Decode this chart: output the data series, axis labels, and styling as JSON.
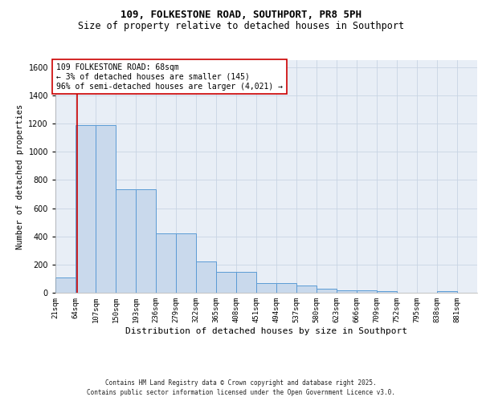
{
  "title": "109, FOLKESTONE ROAD, SOUTHPORT, PR8 5PH",
  "subtitle": "Size of property relative to detached houses in Southport",
  "xlabel": "Distribution of detached houses by size in Southport",
  "ylabel": "Number of detached properties",
  "bar_edges": [
    21,
    64,
    107,
    150,
    193,
    236,
    279,
    322,
    365,
    408,
    451,
    494,
    537,
    580,
    623,
    666,
    709,
    752,
    795,
    838,
    881
  ],
  "bar_heights": [
    107,
    1190,
    1190,
    735,
    735,
    420,
    420,
    220,
    150,
    150,
    70,
    70,
    50,
    30,
    15,
    15,
    10,
    0,
    0,
    10,
    0
  ],
  "bar_color": "#c9d9ec",
  "bar_edge_color": "#5b9bd5",
  "grid_color": "#c8d4e3",
  "background_color": "#e8eef6",
  "property_size": 68,
  "red_line_color": "#cc0000",
  "annotation_text": "109 FOLKESTONE ROAD: 68sqm\n← 3% of detached houses are smaller (145)\n96% of semi-detached houses are larger (4,021) →",
  "annotation_box_color": "#cc0000",
  "ylim": [
    0,
    1650
  ],
  "yticks": [
    0,
    200,
    400,
    600,
    800,
    1000,
    1200,
    1400,
    1600
  ],
  "footer_line1": "Contains HM Land Registry data © Crown copyright and database right 2025.",
  "footer_line2": "Contains public sector information licensed under the Open Government Licence v3.0.",
  "title_fontsize": 9,
  "subtitle_fontsize": 8.5,
  "axis_label_fontsize": 7.5,
  "tick_fontsize": 7,
  "annotation_fontsize": 7,
  "footer_fontsize": 5.5
}
